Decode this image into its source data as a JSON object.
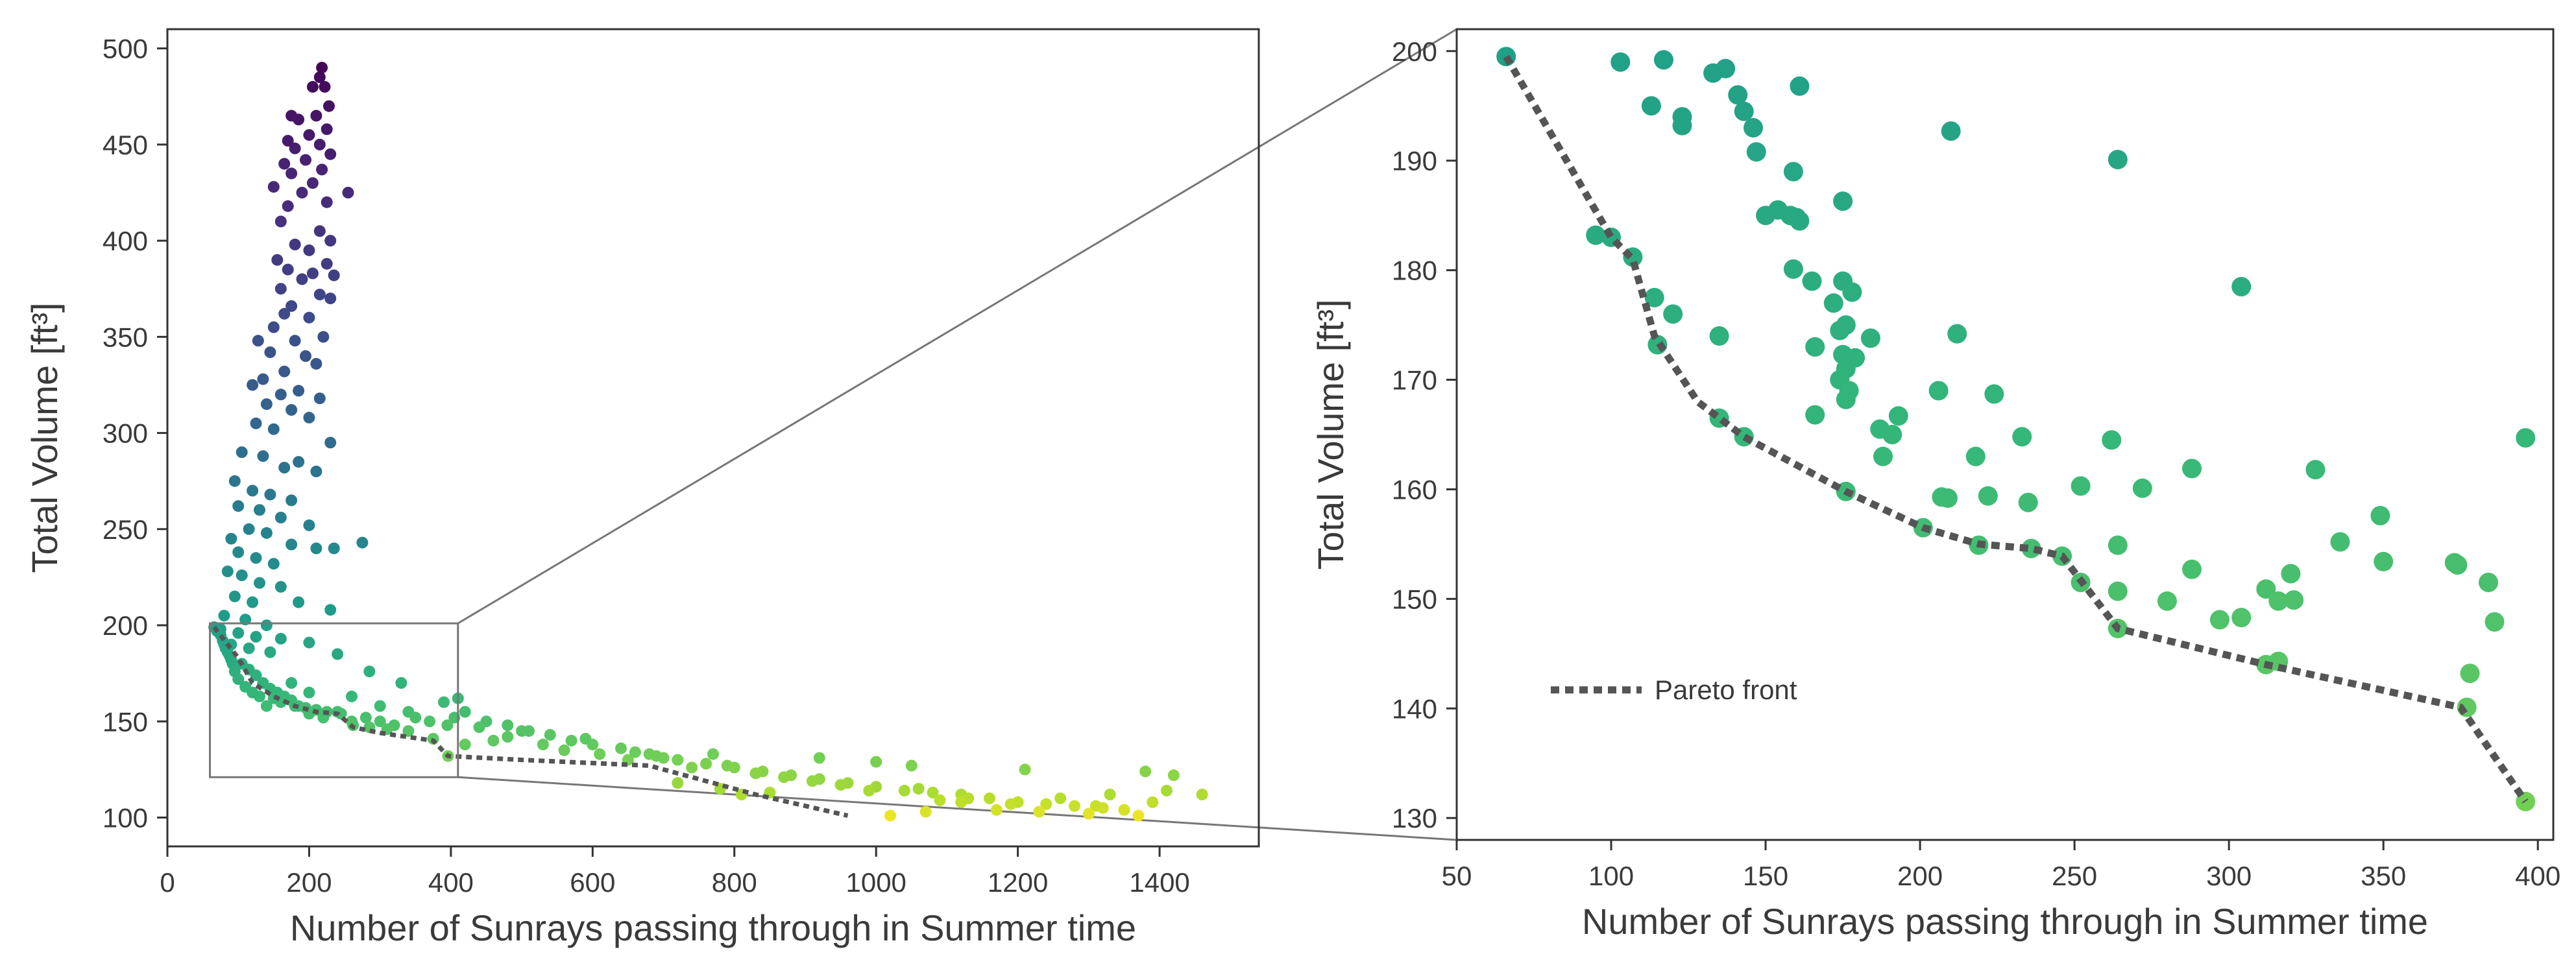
{
  "chart_data": [
    {
      "type": "scatter",
      "panel": "overview",
      "xlabel": "Number of Sunrays passing through in Summer time",
      "ylabel": "Total Volume [ft³]",
      "xlim": [
        0,
        1540
      ],
      "ylim": [
        85,
        510
      ],
      "xticks": [
        0,
        200,
        400,
        600,
        800,
        1000,
        1200,
        1400
      ],
      "yticks": [
        100,
        150,
        200,
        250,
        300,
        350,
        400,
        450,
        500
      ],
      "color_by": "Total Volume",
      "colormap": [
        "#fde725",
        "#b5de2b",
        "#6ece58",
        "#35b779",
        "#1f9e89",
        "#26828e",
        "#31688e",
        "#3e4989",
        "#482878",
        "#440154"
      ],
      "color_range": [
        100,
        500
      ],
      "points": [
        [
          218,
          490
        ],
        [
          215,
          485
        ],
        [
          222,
          480
        ],
        [
          205,
          480
        ],
        [
          228,
          470
        ],
        [
          175,
          465
        ],
        [
          210,
          465
        ],
        [
          185,
          463
        ],
        [
          225,
          458
        ],
        [
          170,
          452
        ],
        [
          200,
          455
        ],
        [
          215,
          450
        ],
        [
          180,
          448
        ],
        [
          230,
          445
        ],
        [
          165,
          440
        ],
        [
          195,
          442
        ],
        [
          218,
          437
        ],
        [
          175,
          435
        ],
        [
          205,
          430
        ],
        [
          255,
          425
        ],
        [
          150,
          428
        ],
        [
          190,
          425
        ],
        [
          225,
          420
        ],
        [
          170,
          418
        ],
        [
          160,
          410
        ],
        [
          215,
          405
        ],
        [
          230,
          400
        ],
        [
          180,
          398
        ],
        [
          200,
          395
        ],
        [
          155,
          390
        ],
        [
          225,
          388
        ],
        [
          170,
          385
        ],
        [
          205,
          383
        ],
        [
          190,
          380
        ],
        [
          235,
          382
        ],
        [
          160,
          375
        ],
        [
          215,
          372
        ],
        [
          230,
          370
        ],
        [
          175,
          366
        ],
        [
          165,
          362
        ],
        [
          200,
          360
        ],
        [
          150,
          355
        ],
        [
          220,
          350
        ],
        [
          180,
          348
        ],
        [
          128,
          348
        ],
        [
          145,
          342
        ],
        [
          195,
          340
        ],
        [
          210,
          336
        ],
        [
          165,
          332
        ],
        [
          135,
          328
        ],
        [
          120,
          325
        ],
        [
          185,
          322
        ],
        [
          160,
          320
        ],
        [
          215,
          318
        ],
        [
          140,
          315
        ],
        [
          175,
          312
        ],
        [
          200,
          308
        ],
        [
          125,
          305
        ],
        [
          150,
          302
        ],
        [
          230,
          295
        ],
        [
          105,
          290
        ],
        [
          135,
          288
        ],
        [
          185,
          285
        ],
        [
          165,
          282
        ],
        [
          210,
          280
        ],
        [
          95,
          275
        ],
        [
          120,
          270
        ],
        [
          145,
          268
        ],
        [
          175,
          265
        ],
        [
          100,
          262
        ],
        [
          130,
          260
        ],
        [
          160,
          256
        ],
        [
          200,
          252
        ],
        [
          115,
          250
        ],
        [
          140,
          248
        ],
        [
          90,
          245
        ],
        [
          175,
          242
        ],
        [
          210,
          240
        ],
        [
          235,
          240
        ],
        [
          275,
          243
        ],
        [
          100,
          238
        ],
        [
          125,
          235
        ],
        [
          150,
          232
        ],
        [
          85,
          228
        ],
        [
          105,
          226
        ],
        [
          130,
          222
        ],
        [
          160,
          220
        ],
        [
          95,
          215
        ],
        [
          120,
          212
        ],
        [
          185,
          212
        ],
        [
          230,
          208
        ],
        [
          80,
          205
        ],
        [
          110,
          203
        ],
        [
          140,
          200
        ],
        [
          75,
          198
        ],
        [
          100,
          196
        ],
        [
          125,
          194
        ],
        [
          160,
          193
        ],
        [
          200,
          191
        ],
        [
          90,
          190
        ],
        [
          115,
          188
        ],
        [
          145,
          186
        ],
        [
          240,
          185
        ],
        [
          285,
          176
        ],
        [
          330,
          170
        ],
        [
          175,
          170
        ],
        [
          200,
          165
        ],
        [
          260,
          163
        ],
        [
          300,
          158
        ],
        [
          340,
          155
        ],
        [
          390,
          160
        ],
        [
          410,
          162
        ],
        [
          405,
          152
        ],
        [
          420,
          155
        ],
        [
          450,
          150
        ],
        [
          480,
          148
        ],
        [
          510,
          145
        ],
        [
          540,
          143
        ],
        [
          570,
          140
        ],
        [
          600,
          138
        ],
        [
          640,
          136
        ],
        [
          680,
          133
        ],
        [
          720,
          130
        ],
        [
          760,
          128
        ],
        [
          800,
          126
        ],
        [
          840,
          124
        ],
        [
          880,
          122
        ],
        [
          920,
          120
        ],
        [
          960,
          118
        ],
        [
          1000,
          116
        ],
        [
          1040,
          114
        ],
        [
          1080,
          113
        ],
        [
          1120,
          112
        ],
        [
          1160,
          110
        ],
        [
          1200,
          108
        ],
        [
          1240,
          107
        ],
        [
          1280,
          106
        ],
        [
          1320,
          105
        ],
        [
          1350,
          104
        ],
        [
          460,
          140
        ],
        [
          530,
          138
        ],
        [
          610,
          133
        ],
        [
          700,
          131
        ],
        [
          790,
          127
        ],
        [
          870,
          121
        ],
        [
          950,
          117
        ],
        [
          1060,
          115
        ],
        [
          1130,
          110
        ],
        [
          1190,
          107
        ],
        [
          1260,
          110
        ],
        [
          1310,
          106
        ],
        [
          1390,
          108
        ],
        [
          420,
          138
        ],
        [
          480,
          142
        ],
        [
          560,
          135
        ],
        [
          650,
          130
        ],
        [
          740,
          126
        ],
        [
          830,
          123
        ],
        [
          910,
          119
        ],
        [
          990,
          114
        ],
        [
          1090,
          109
        ],
        [
          1170,
          104
        ],
        [
          1230,
          103
        ],
        [
          1300,
          102
        ],
        [
          1370,
          101
        ],
        [
          1460,
          112
        ],
        [
          1420,
          122
        ],
        [
          1380,
          124
        ],
        [
          1210,
          125
        ],
        [
          1050,
          127
        ],
        [
          1000,
          129
        ],
        [
          920,
          131
        ],
        [
          770,
          133
        ],
        [
          690,
          132
        ],
        [
          660,
          134
        ],
        [
          590,
          141
        ],
        [
          500,
          145
        ],
        [
          440,
          147
        ],
        [
          395,
          148
        ],
        [
          370,
          150
        ],
        [
          350,
          152
        ],
        [
          320,
          148
        ],
        [
          300,
          150
        ],
        [
          280,
          152
        ],
        [
          260,
          150
        ],
        [
          240,
          155
        ],
        [
          220,
          152
        ],
        [
          200,
          154
        ],
        [
          180,
          158
        ],
        [
          160,
          160
        ],
        [
          150,
          162
        ],
        [
          140,
          158
        ],
        [
          130,
          163
        ],
        [
          120,
          165
        ],
        [
          110,
          168
        ],
        [
          100,
          172
        ],
        [
          95,
          176
        ],
        [
          92,
          180
        ],
        [
          90,
          182
        ],
        [
          88,
          184
        ],
        [
          85,
          186
        ],
        [
          82,
          188
        ],
        [
          80,
          190
        ],
        [
          78,
          192
        ],
        [
          75,
          195
        ],
        [
          70,
          197
        ],
        [
          66,
          199
        ],
        [
          105,
          180
        ],
        [
          115,
          177
        ],
        [
          125,
          174
        ],
        [
          135,
          170
        ],
        [
          145,
          167
        ],
        [
          155,
          165
        ],
        [
          165,
          163
        ],
        [
          175,
          161
        ],
        [
          185,
          158
        ],
        [
          195,
          157
        ],
        [
          210,
          156
        ],
        [
          225,
          155
        ],
        [
          245,
          154
        ],
        [
          262,
          148
        ],
        [
          285,
          147
        ],
        [
          310,
          146
        ],
        [
          340,
          145
        ],
        [
          375,
          141
        ],
        [
          396,
          132
        ],
        [
          1020,
          101
        ],
        [
          1070,
          103
        ],
        [
          1120,
          108
        ],
        [
          1330,
          112
        ],
        [
          1410,
          114
        ],
        [
          850,
          113
        ],
        [
          810,
          112
        ],
        [
          780,
          115
        ],
        [
          720,
          118
        ]
      ],
      "pareto_front": [
        [
          66,
          199
        ],
        [
          100,
          183
        ],
        [
          120,
          170
        ],
        [
          150,
          163
        ],
        [
          180,
          158
        ],
        [
          210,
          155
        ],
        [
          240,
          154
        ],
        [
          262,
          147
        ],
        [
          300,
          144
        ],
        [
          375,
          140
        ],
        [
          396,
          132
        ],
        [
          500,
          130
        ],
        [
          680,
          127
        ],
        [
          830,
          112
        ],
        [
          960,
          101
        ]
      ],
      "inset_box": {
        "x": [
          60,
          410
        ],
        "y": [
          121,
          201
        ]
      }
    },
    {
      "type": "scatter",
      "panel": "zoom",
      "xlabel": "Number of Sunrays passing through in Summer time",
      "ylabel": "Total Volume [ft³]",
      "xlim": [
        50,
        405
      ],
      "ylim": [
        128,
        202
      ],
      "xticks": [
        50,
        100,
        150,
        200,
        250,
        300,
        350,
        400
      ],
      "yticks": [
        130,
        140,
        150,
        160,
        170,
        180,
        190,
        200
      ],
      "color_by": "Total Volume",
      "points": [
        [
          66,
          199.5
        ],
        [
          103,
          199
        ],
        [
          117,
          199.2
        ],
        [
          133,
          198
        ],
        [
          137,
          198.4
        ],
        [
          141,
          196
        ],
        [
          143,
          194.5
        ],
        [
          161,
          196.8
        ],
        [
          113,
          195
        ],
        [
          123,
          194
        ],
        [
          123,
          193.2
        ],
        [
          146,
          193
        ],
        [
          147,
          190.8
        ],
        [
          159,
          189
        ],
        [
          160,
          184.8
        ],
        [
          150,
          185
        ],
        [
          154,
          185.5
        ],
        [
          158,
          185
        ],
        [
          161,
          184.5
        ],
        [
          175,
          186.3
        ],
        [
          210,
          192.7
        ],
        [
          264,
          190.1
        ],
        [
          304,
          178.5
        ],
        [
          95,
          183.2
        ],
        [
          100,
          183
        ],
        [
          107,
          181.2
        ],
        [
          114,
          177.5
        ],
        [
          120,
          176
        ],
        [
          115,
          173.2
        ],
        [
          135,
          174
        ],
        [
          159,
          180.1
        ],
        [
          165,
          179
        ],
        [
          172,
          177
        ],
        [
          175,
          179
        ],
        [
          178,
          178
        ],
        [
          176,
          175
        ],
        [
          179,
          172
        ],
        [
          184,
          173.8
        ],
        [
          166,
          173
        ],
        [
          174,
          174.5
        ],
        [
          175,
          172.3
        ],
        [
          176,
          171
        ],
        [
          174,
          170
        ],
        [
          177,
          169
        ],
        [
          176,
          168.2
        ],
        [
          166,
          166.8
        ],
        [
          187,
          165.5
        ],
        [
          193,
          166.7
        ],
        [
          191,
          165
        ],
        [
          206,
          169
        ],
        [
          212,
          174.2
        ],
        [
          224,
          168.7
        ],
        [
          218,
          163
        ],
        [
          233,
          164.8
        ],
        [
          188,
          163
        ],
        [
          135,
          166.5
        ],
        [
          143,
          164.8
        ],
        [
          201,
          156.5
        ],
        [
          207,
          159.3
        ],
        [
          209,
          159.2
        ],
        [
          222,
          159.4
        ],
        [
          235,
          158.8
        ],
        [
          252,
          160.3
        ],
        [
          262,
          164.5
        ],
        [
          272,
          160.1
        ],
        [
          176,
          159.8
        ],
        [
          219,
          154.9
        ],
        [
          236,
          154.6
        ],
        [
          246,
          153.9
        ],
        [
          252,
          151.5
        ],
        [
          264,
          154.9
        ],
        [
          264,
          150.7
        ],
        [
          264,
          147.3
        ],
        [
          280,
          149.8
        ],
        [
          288,
          152.7
        ],
        [
          288,
          161.9
        ],
        [
          297,
          148.1
        ],
        [
          304,
          148.3
        ],
        [
          312,
          144
        ],
        [
          316,
          144.3
        ],
        [
          312,
          150.9
        ],
        [
          316,
          149.8
        ],
        [
          320,
          152.3
        ],
        [
          321,
          149.9
        ],
        [
          328,
          161.8
        ],
        [
          336,
          155.2
        ],
        [
          349,
          157.6
        ],
        [
          350,
          153.4
        ],
        [
          373,
          153.3
        ],
        [
          374,
          153.1
        ],
        [
          378,
          143.2
        ],
        [
          377,
          140.1
        ],
        [
          384,
          151.5
        ],
        [
          386,
          147.9
        ],
        [
          396,
          164.7
        ],
        [
          396,
          131.5
        ]
      ],
      "pareto_front": [
        [
          66,
          199.5
        ],
        [
          100,
          183
        ],
        [
          107,
          181
        ],
        [
          114,
          174
        ],
        [
          128,
          168
        ],
        [
          143,
          164.8
        ],
        [
          176,
          159.8
        ],
        [
          201,
          156.5
        ],
        [
          219,
          155
        ],
        [
          236,
          154.6
        ],
        [
          246,
          153.9
        ],
        [
          264,
          147.3
        ],
        [
          312,
          144
        ],
        [
          375,
          140.1
        ],
        [
          396,
          131.5
        ]
      ],
      "legend": {
        "label": "Pareto front",
        "placement": "lower-left"
      }
    }
  ]
}
